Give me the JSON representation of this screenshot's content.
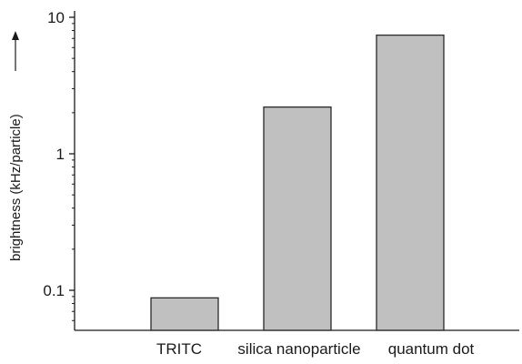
{
  "chart_data": {
    "type": "bar",
    "yscale": "log",
    "ylabel": "brightness (kHz/particle)",
    "xlabel": "",
    "title": "",
    "categories": [
      "TRITC",
      "silica nanoparticle",
      "quantum dot"
    ],
    "values": [
      0.088,
      2.2,
      7.4
    ],
    "ylim": [
      0.05,
      10
    ],
    "yticks": [
      0.1,
      1,
      10
    ],
    "ytick_labels": [
      "0.1",
      "1",
      "10"
    ],
    "grid": false,
    "bar_color": "#c0c0c0",
    "bar_edge_color": "#2a2a2a",
    "axis_color": "#1a1a1a"
  }
}
